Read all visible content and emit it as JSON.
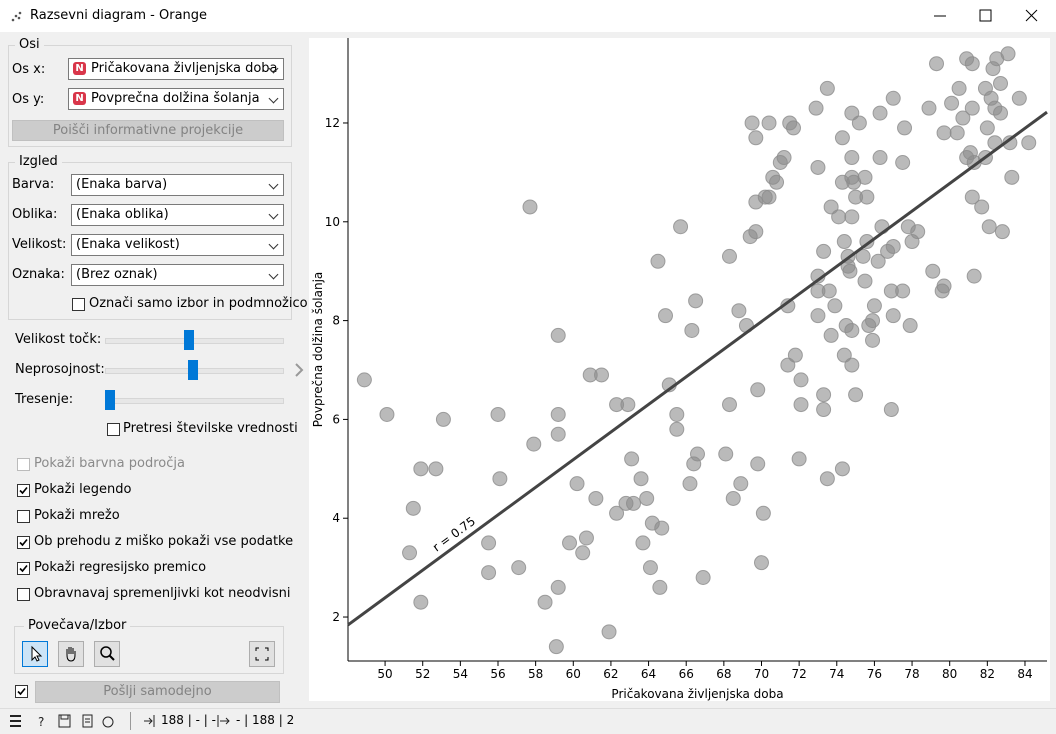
{
  "window": {
    "title": "Razsevni diagram - Orange"
  },
  "axes_box": {
    "title": "Osi",
    "x_label": "Os x:",
    "x_value": "Pričakovana življenjska doba",
    "y_label": "Os y:",
    "y_value": "Povprečna dolžina šolanja",
    "button": "Poišči informativne projekcije"
  },
  "look_box": {
    "title": "Izgled",
    "rows": [
      {
        "label": "Barva:",
        "value": "(Enaka barva)"
      },
      {
        "label": "Oblika:",
        "value": "(Enaka oblika)"
      },
      {
        "label": "Velikost:",
        "value": "(Enaka velikost)"
      },
      {
        "label": "Oznaka:",
        "value": "(Brez oznak)"
      }
    ],
    "checkbox": {
      "label": "Označi samo izbor in podmnožico",
      "checked": false
    }
  },
  "sliders": [
    {
      "label": "Velikost točk:"
    },
    {
      "label": "Neprosojnost:"
    },
    {
      "label": "Tresenje:"
    }
  ],
  "jitter_checkbox": {
    "label": "Pretresi številske vrednosti",
    "checked": false
  },
  "options": [
    {
      "label": "Pokaži barvna področja",
      "checked": false,
      "disabled": true
    },
    {
      "label": "Pokaži legendo",
      "checked": true,
      "disabled": false
    },
    {
      "label": "Pokaži mrežo",
      "checked": false,
      "disabled": false
    },
    {
      "label": "Ob prehodu z miško pokaži vse podatke",
      "checked": true,
      "disabled": false
    },
    {
      "label": "Pokaži regresijsko premico",
      "checked": true,
      "disabled": false
    },
    {
      "label": "Obravnavaj spremenljivki kot neodvisni",
      "checked": false,
      "disabled": false
    }
  ],
  "zoom_box": {
    "title": "Povečava/Izbor"
  },
  "send": {
    "label": "Pošlji samodejno",
    "checked": true
  },
  "status": {
    "input": "188 | - | -",
    "output": "- | 188 | 2"
  },
  "chart_data": {
    "type": "scatter",
    "x_label": "Pričakovana življenjska doba",
    "y_label": "Povprečna dolžina šolanja",
    "color": "#8c8c8c",
    "xlim": [
      48.03,
      85.17
    ],
    "ylim": [
      1.11,
      13.72
    ],
    "xticks": [
      50,
      52,
      54,
      56,
      58,
      60,
      62,
      64,
      66,
      68,
      70,
      72,
      74,
      76,
      78,
      80,
      82,
      84
    ],
    "yticks": [
      2,
      4,
      6,
      8,
      10,
      12
    ],
    "regression": {
      "x": [
        48.03,
        85.17
      ],
      "y": [
        1.84,
        12.22
      ],
      "label": "r = 0.75",
      "color": "#444444"
    },
    "x": [
      48.9,
      50.1,
      51.5,
      51.3,
      51.9,
      52.7,
      51.9,
      53.1,
      56.0,
      56.1,
      55.5,
      55.5,
      57.1,
      57.9,
      57.7,
      58.5,
      59.2,
      59.2,
      59.2,
      59.1,
      59.2,
      59.8,
      60.2,
      60.5,
      60.7,
      60.9,
      61.5,
      61.2,
      61.9,
      62.3,
      62.9,
      62.3,
      62.8,
      63.2,
      63.1,
      63.6,
      63.7,
      63.9,
      64.2,
      64.1,
      64.6,
      64.7,
      64.5,
      64.9,
      65.1,
      65.5,
      65.5,
      65.7,
      66.2,
      66.4,
      66.6,
      66.5,
      66.3,
      66.9,
      68.1,
      68.3,
      68.5,
      68.9,
      68.8,
      69.2,
      68.3,
      69.4,
      69.7,
      69.7,
      70.2,
      70.4,
      69.8,
      69.8,
      70.0,
      70.1,
      69.5,
      69.7,
      70.4,
      70.6,
      70.8,
      71.0,
      71.2,
      71.5,
      71.7,
      71.4,
      71.4,
      71.8,
      72.1,
      72.1,
      72.0,
      72.9,
      73.5,
      73.0,
      73.7,
      73.0,
      73.3,
      73.0,
      73.6,
      73.9,
      73.0,
      73.7,
      73.3,
      73.3,
      73.5,
      74.3,
      74.3,
      74.3,
      74.1,
      74.4,
      74.6,
      74.6,
      74.4,
      74.5,
      74.8,
      74.8,
      75.0,
      74.8,
      75.2,
      74.8,
      74.8,
      74.9,
      74.8,
      74.7,
      75.0,
      75.4,
      75.5,
      75.6,
      75.6,
      75.5,
      75.7,
      75.9,
      76.0,
      75.9,
      76.2,
      76.3,
      76.3,
      76.4,
      76.7,
      77.0,
      77.0,
      76.9,
      77.0,
      77.5,
      77.5,
      77.6,
      77.8,
      78.0,
      78.3,
      77.9,
      76.9,
      78.9,
      79.3,
      79.7,
      79.1,
      79.6,
      79.7,
      80.1,
      80.5,
      80.4,
      80.7,
      80.9,
      81.2,
      80.9,
      81.1,
      81.2,
      81.3,
      81.2,
      81.7,
      81.3,
      81.9,
      82.0,
      81.9,
      82.2,
      82.3,
      82.1,
      82.5,
      82.7,
      82.4,
      82.7,
      82.4,
      82.8,
      83.1,
      83.2,
      83.3,
      83.7,
      84.2
    ],
    "y": [
      6.8,
      6.1,
      4.2,
      3.3,
      5.0,
      5.0,
      2.3,
      6.0,
      6.1,
      4.8,
      3.5,
      2.9,
      3.0,
      5.5,
      10.3,
      2.3,
      6.1,
      7.7,
      5.7,
      1.4,
      2.6,
      3.5,
      4.7,
      3.3,
      3.6,
      6.9,
      6.9,
      4.4,
      1.7,
      6.3,
      6.3,
      4.1,
      4.3,
      4.3,
      5.2,
      4.8,
      3.5,
      4.4,
      3.9,
      3.0,
      2.6,
      3.8,
      9.2,
      8.1,
      6.7,
      6.1,
      5.8,
      9.9,
      4.7,
      5.1,
      5.3,
      8.4,
      7.8,
      2.8,
      5.3,
      6.3,
      4.4,
      4.7,
      8.2,
      7.9,
      9.3,
      9.7,
      9.8,
      10.4,
      10.5,
      10.5,
      6.6,
      5.1,
      3.1,
      4.1,
      12.0,
      11.7,
      12.0,
      10.9,
      10.8,
      11.2,
      11.3,
      12.0,
      11.9,
      8.3,
      7.1,
      7.3,
      6.8,
      6.3,
      5.2,
      12.3,
      12.7,
      11.1,
      10.3,
      8.9,
      9.4,
      8.6,
      8.6,
      8.3,
      8.1,
      7.7,
      6.5,
      6.2,
      4.8,
      5.0,
      11.7,
      10.8,
      10.1,
      9.6,
      9.1,
      9.3,
      7.3,
      7.9,
      7.8,
      7.1,
      6.5,
      12.2,
      12.0,
      11.3,
      10.9,
      10.8,
      10.1,
      9.0,
      10.5,
      9.3,
      10.9,
      10.5,
      9.6,
      8.8,
      7.9,
      8.0,
      8.3,
      7.6,
      9.2,
      12.2,
      11.3,
      9.9,
      9.4,
      12.5,
      9.5,
      8.6,
      8.1,
      8.6,
      11.2,
      11.9,
      9.9,
      9.6,
      9.8,
      7.9,
      6.2,
      12.3,
      13.2,
      11.8,
      9.0,
      8.6,
      8.7,
      12.4,
      12.7,
      11.8,
      12.1,
      13.3,
      13.2,
      11.3,
      11.4,
      12.3,
      11.2,
      10.5,
      10.3,
      8.9,
      12.7,
      11.9,
      11.3,
      12.5,
      13.1,
      9.9,
      13.3,
      12.8,
      12.3,
      12.2,
      11.6,
      9.8,
      13.4,
      11.6,
      10.9,
      12.5,
      11.6
    ]
  }
}
